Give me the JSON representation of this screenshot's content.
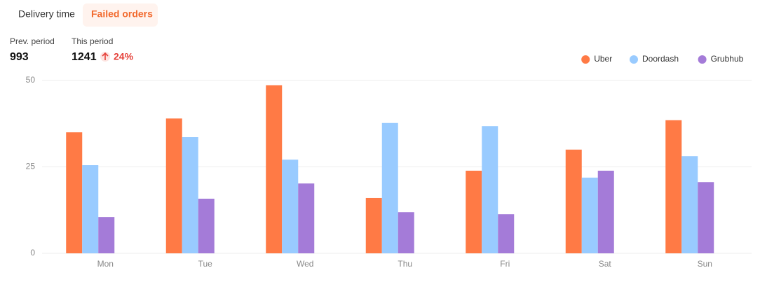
{
  "tabs": [
    {
      "label": "Delivery time",
      "active": false
    },
    {
      "label": "Failed orders",
      "active": true
    }
  ],
  "stats": {
    "previous": {
      "label": "Prev. period",
      "value": 993
    },
    "current": {
      "label": "This period",
      "value": 1241,
      "change": "24%"
    }
  },
  "chart_data": {
    "type": "bar",
    "categories": [
      "Mon",
      "Tue",
      "Wed",
      "Thu",
      "Fri",
      "Sat",
      "Sun"
    ],
    "series": [
      {
        "name": "Uber",
        "color": "#ff7a45",
        "values": [
          35,
          39,
          48.6,
          16,
          23.9,
          30,
          38.5
        ]
      },
      {
        "name": "Doordash",
        "color": "#99cbff",
        "values": [
          25.5,
          33.6,
          27.1,
          37.7,
          36.8,
          21.9,
          28.1
        ]
      },
      {
        "name": "Grubhub",
        "color": "#a47bd8",
        "values": [
          10.5,
          15.8,
          20.2,
          11.9,
          11.3,
          23.9,
          20.6
        ]
      }
    ],
    "ylim": [
      0,
      50
    ],
    "yticks": [
      0,
      25,
      50
    ],
    "grid": true,
    "legend": "top-right"
  }
}
